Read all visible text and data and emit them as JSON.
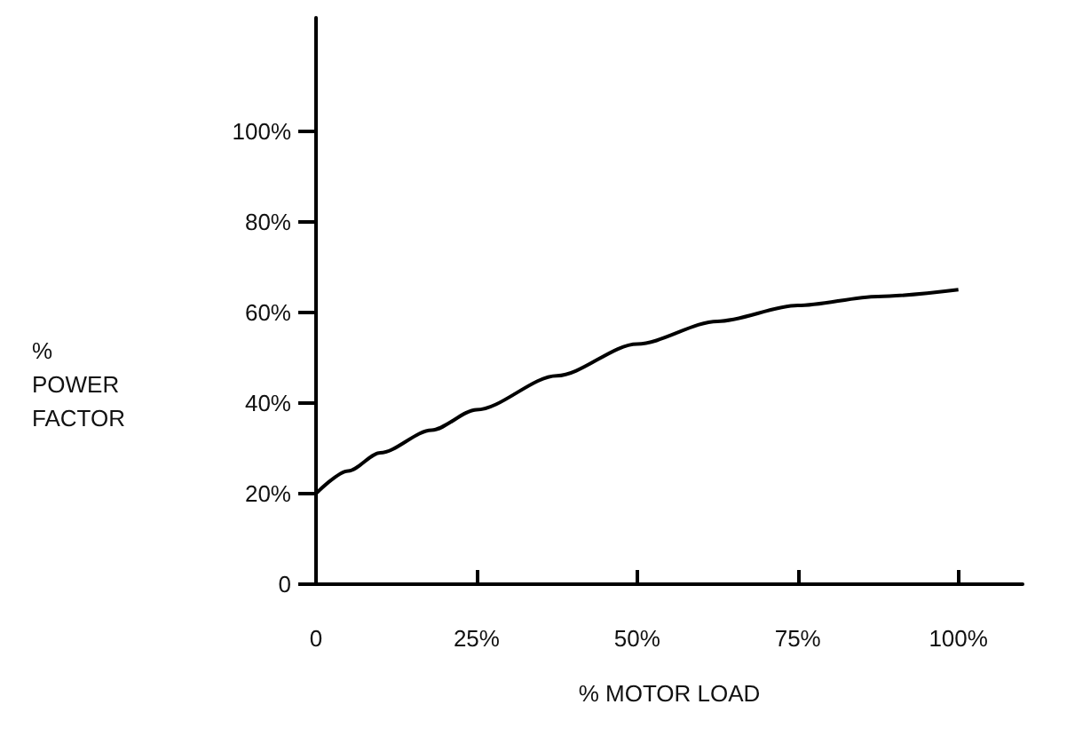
{
  "chart_data": {
    "type": "line",
    "xlabel": "% MOTOR LOAD",
    "ylabel": "%\nPOWER\nFACTOR",
    "x": [
      0,
      5,
      10,
      18,
      25,
      37.5,
      50,
      62.5,
      75,
      87.5,
      100
    ],
    "series": [
      {
        "color": "#000000",
        "values": [
          20,
          25,
          29,
          34,
          38.5,
          46,
          53,
          58,
          61.5,
          63.5,
          65
        ]
      }
    ],
    "xlim": [
      0,
      110
    ],
    "ylim": [
      0,
      125
    ],
    "xticks": [
      0,
      {
        "value": 25,
        "label": "25%"
      },
      {
        "value": 50,
        "label": "50%"
      },
      {
        "value": 75,
        "label": "75%"
      },
      {
        "value": 100,
        "label": "100%"
      }
    ],
    "yticks": [
      0,
      {
        "value": 20,
        "label": "20%"
      },
      {
        "value": 40,
        "label": "40%"
      },
      {
        "value": 60,
        "label": "60%"
      },
      {
        "value": 80,
        "label": "80%"
      },
      {
        "value": 100,
        "label": "100%"
      }
    ],
    "grid": false,
    "marker": "none",
    "line_style": "solid"
  }
}
